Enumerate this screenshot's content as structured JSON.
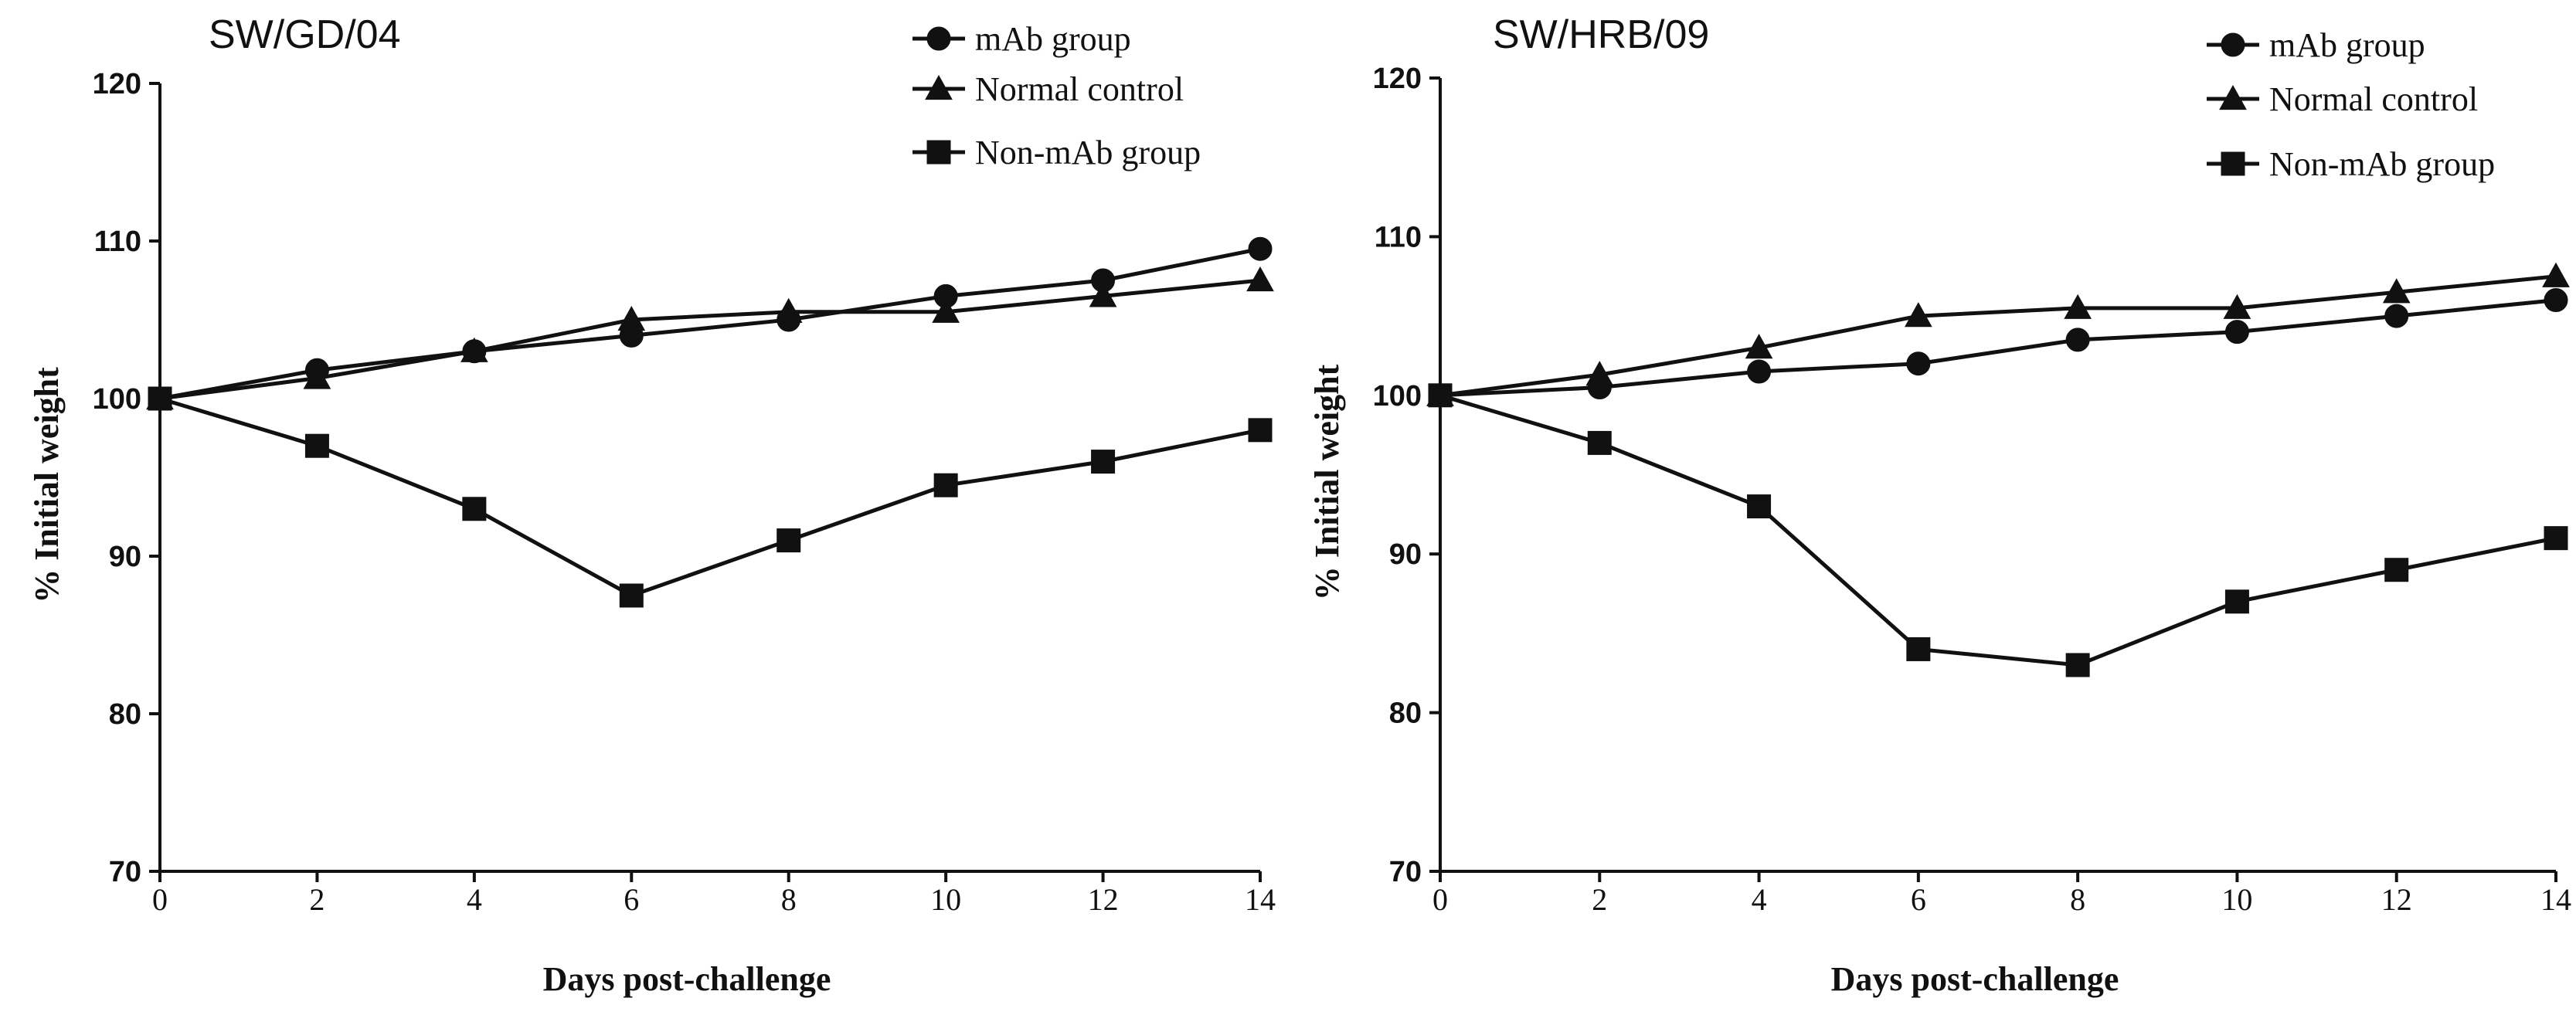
{
  "chart_data": [
    {
      "type": "line",
      "title": "SW/GD/04",
      "xlabel": "Days post-challenge",
      "ylabel": "% Initial weight",
      "xlim": [
        0,
        14
      ],
      "ylim": [
        70,
        120
      ],
      "xticks": [
        0,
        2,
        4,
        6,
        8,
        10,
        12,
        14
      ],
      "yticks": [
        70,
        80,
        90,
        100,
        110,
        120
      ],
      "legend_position": "top-right",
      "series": [
        {
          "name": "mAb group",
          "marker": "circle",
          "x": [
            0,
            2,
            4,
            6,
            8,
            10,
            12,
            14
          ],
          "y": [
            100,
            101.8,
            103,
            104,
            105,
            106.5,
            107.5,
            109.5
          ]
        },
        {
          "name": "Normal control",
          "marker": "triangle",
          "x": [
            0,
            2,
            4,
            6,
            8,
            10,
            12,
            14
          ],
          "y": [
            100,
            101.3,
            103,
            105,
            105.5,
            105.5,
            106.5,
            107.5
          ]
        },
        {
          "name": "Non-mAb group",
          "marker": "square",
          "x": [
            0,
            2,
            4,
            6,
            8,
            10,
            12,
            14
          ],
          "y": [
            100,
            97,
            93,
            87.5,
            91,
            94.5,
            96,
            98
          ]
        }
      ]
    },
    {
      "type": "line",
      "title": "SW/HRB/09",
      "xlabel": "Days post-challenge",
      "ylabel": "% Initial weight",
      "xlim": [
        0,
        14
      ],
      "ylim": [
        70,
        120
      ],
      "xticks": [
        0,
        2,
        4,
        6,
        8,
        10,
        12,
        14
      ],
      "yticks": [
        70,
        80,
        90,
        100,
        110,
        120
      ],
      "legend_position": "top-right",
      "series": [
        {
          "name": "mAb group",
          "marker": "circle",
          "x": [
            0,
            2,
            4,
            6,
            8,
            10,
            12,
            14
          ],
          "y": [
            100,
            100.5,
            101.5,
            102,
            103.5,
            104,
            105,
            106
          ]
        },
        {
          "name": "Normal control",
          "marker": "triangle",
          "x": [
            0,
            2,
            4,
            6,
            8,
            10,
            12,
            14
          ],
          "y": [
            100,
            101.3,
            103,
            105,
            105.5,
            105.5,
            106.5,
            107.5
          ]
        },
        {
          "name": "Non-mAb group",
          "marker": "square",
          "x": [
            0,
            2,
            4,
            6,
            8,
            10,
            12,
            14
          ],
          "y": [
            100,
            97,
            93,
            84,
            83,
            87,
            89,
            91
          ]
        }
      ]
    }
  ]
}
